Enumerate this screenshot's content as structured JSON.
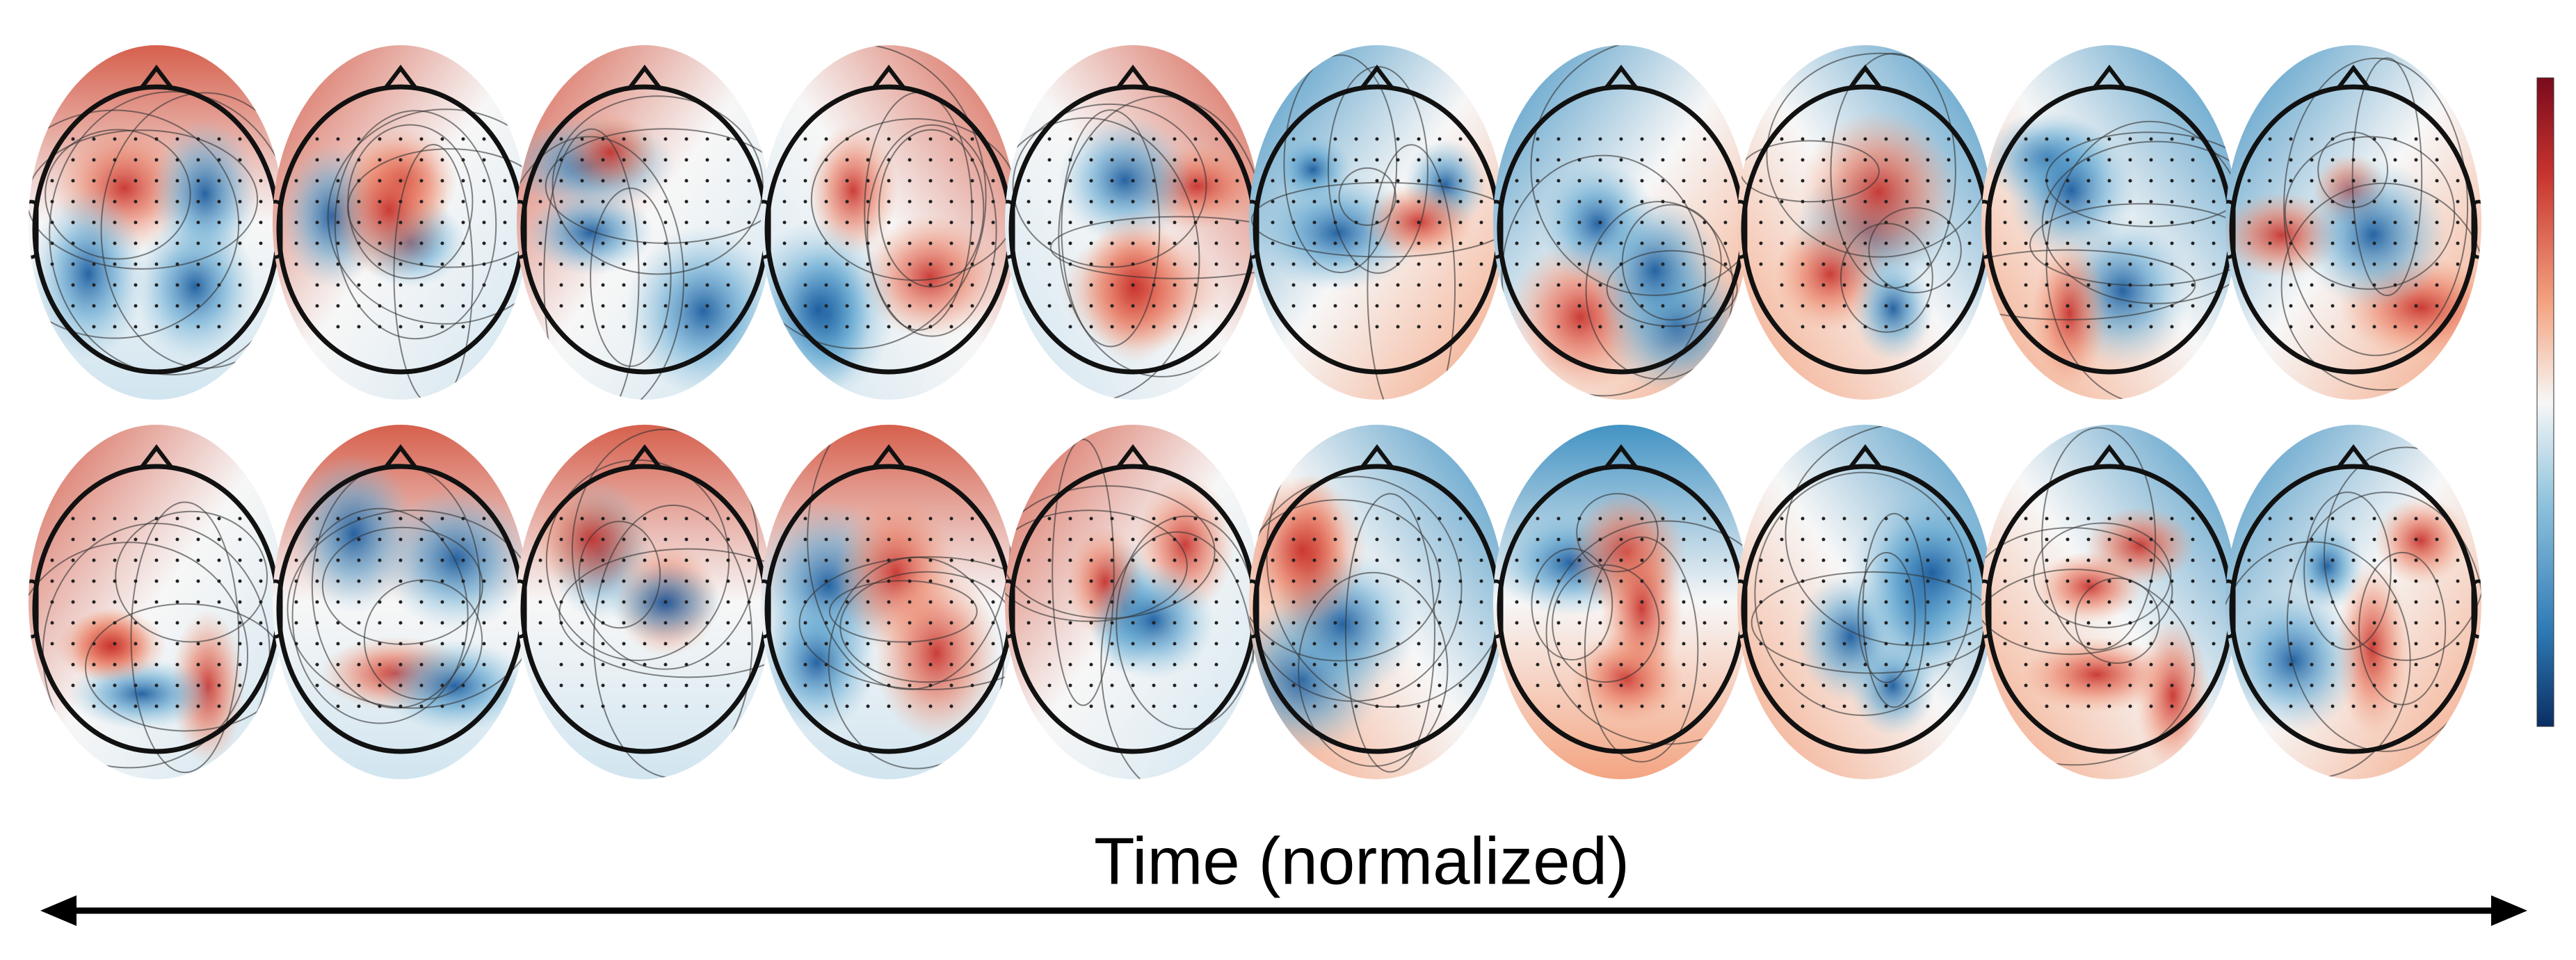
{
  "xlabel": "Time (normalized)"
}
